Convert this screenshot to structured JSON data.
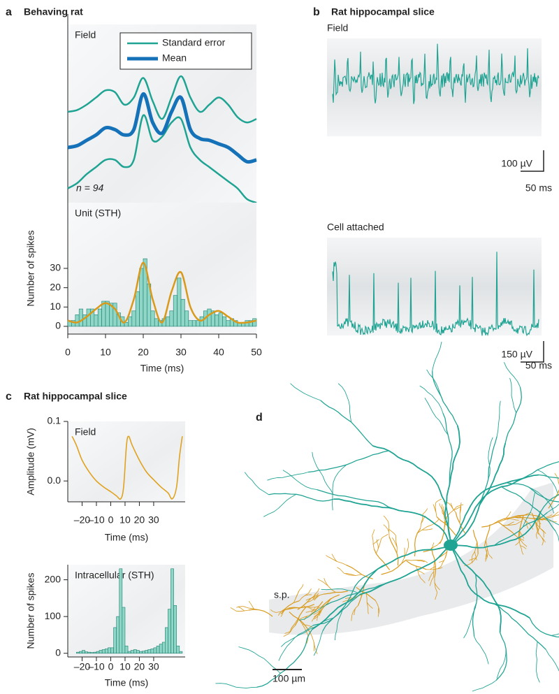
{
  "panels": [
    {
      "letter": "a",
      "title": "Behaving rat"
    },
    {
      "letter": "b",
      "title": "Rat hippocampal slice"
    },
    {
      "letter": "c",
      "title": "Rat hippocampal slice"
    },
    {
      "letter": "d"
    }
  ],
  "neuron": {
    "annotation": "s.p.",
    "scale": "100 µm"
  },
  "chart_data": [
    {
      "type": "line",
      "label": "Field",
      "annotation": "n = 94",
      "legend": "upper right",
      "x": [
        0,
        2.5,
        5,
        7.5,
        10,
        12.5,
        15,
        17.5,
        20,
        22.5,
        25,
        27.5,
        30,
        32.5,
        35,
        37.5,
        40,
        42.5,
        45,
        47.5,
        50
      ],
      "xlim": [
        0,
        50
      ],
      "ylim": [
        0,
        100
      ],
      "series": [
        {
          "name": "Standard error",
          "color": "#1fa393",
          "upper": [
            51,
            52,
            55,
            59,
            63,
            62,
            55,
            59,
            70,
            57,
            47,
            59,
            71,
            59,
            51,
            55,
            59,
            55,
            48,
            45,
            47
          ],
          "lower": [
            8,
            11,
            16,
            20,
            24,
            24,
            20,
            24,
            49,
            35,
            37,
            45,
            47,
            31,
            24,
            20,
            16,
            12,
            8,
            2,
            0
          ]
        },
        {
          "name": "Mean",
          "color": "#1672b8",
          "values": [
            31,
            32,
            35,
            38,
            42,
            41,
            38,
            41,
            61,
            45,
            39,
            51,
            59,
            41,
            36,
            35,
            33,
            31,
            27,
            23,
            24
          ]
        }
      ]
    },
    {
      "type": "histogram",
      "label": "Unit (STH)",
      "ylabel": "Number of spikes",
      "xlabel": "Time (ms)",
      "bins": [
        0,
        1,
        2,
        3,
        4,
        5,
        6,
        7,
        8,
        9,
        10,
        11,
        12,
        13,
        14,
        15,
        16,
        17,
        18,
        19,
        20,
        21,
        22,
        23,
        24,
        25,
        26,
        27,
        28,
        29,
        30,
        31,
        32,
        33,
        34,
        35,
        36,
        37,
        38,
        39,
        40,
        41,
        42,
        43,
        44,
        45,
        46,
        47,
        48,
        49,
        50
      ],
      "values": [
        3,
        3,
        6,
        9,
        6,
        9,
        9,
        6,
        9,
        13,
        13,
        12,
        12,
        7,
        5,
        2,
        5,
        8,
        18,
        30,
        35,
        22,
        8,
        4,
        3,
        4,
        5,
        8,
        16,
        25,
        14,
        8,
        3,
        3,
        3,
        5,
        8,
        9,
        8,
        6,
        7,
        5,
        3,
        4,
        3,
        2,
        2,
        3,
        3,
        4
      ],
      "color": "#8fd6c6",
      "xlim": [
        0,
        50
      ],
      "xticks": [
        0,
        10,
        20,
        30,
        40,
        50
      ],
      "ylim": [
        -4,
        64
      ],
      "yticks": [
        0,
        10,
        20,
        30
      ],
      "line": {
        "color": "#d99a1c",
        "x": [
          0,
          2.5,
          5,
          7.5,
          10,
          12.5,
          15,
          17.5,
          20,
          22.5,
          25,
          27.5,
          30,
          32.5,
          35,
          37.5,
          40,
          42.5,
          45,
          47.5,
          50
        ],
        "values": [
          3,
          2,
          5,
          9,
          12,
          9,
          2,
          14,
          33,
          14,
          2,
          18,
          28,
          10,
          3,
          6,
          8,
          5,
          2,
          2,
          3
        ]
      }
    },
    {
      "type": "trace",
      "label": "Field",
      "scale_y": "100 µV",
      "scale_x": "50 ms",
      "color": "#1fa393"
    },
    {
      "type": "trace",
      "label": "Cell attached",
      "scale_y": "150 µV",
      "scale_x": "50 ms",
      "color": "#1fa393"
    },
    {
      "type": "line",
      "label": "Field",
      "ylabel": "Amplitude (mV)",
      "xlabel": "Time (ms)",
      "x": [
        -27,
        -24,
        -20,
        -15,
        -10,
        -5,
        0,
        4,
        7,
        9,
        11,
        12.5,
        15,
        20,
        25,
        30,
        35,
        40,
        43,
        46,
        48,
        50
      ],
      "xlim": [
        -30,
        52
      ],
      "xticks": [
        {
          "value": -20,
          "label": "–20"
        },
        {
          "value": -10,
          "label": "–10"
        },
        0,
        10,
        20,
        30
      ],
      "ylim": [
        -0.035,
        0.1
      ],
      "yticks": [
        {
          "value": 0,
          "label": "0.0"
        },
        0.1
      ],
      "series": [
        {
          "color": "#e0a21f",
          "values": [
            0.075,
            0.06,
            0.035,
            0.015,
            0.0,
            -0.01,
            -0.018,
            -0.025,
            -0.03,
            -0.01,
            0.06,
            0.075,
            0.06,
            0.035,
            0.015,
            0.002,
            -0.01,
            -0.02,
            -0.03,
            -0.01,
            0.04,
            0.075
          ]
        }
      ]
    },
    {
      "type": "histogram",
      "label": "Intracellular (STH)",
      "ylabel": "Number of spikes",
      "xlabel": "Time (ms)",
      "bins": [
        -28,
        -26,
        -24,
        -22,
        -20,
        -18,
        -16,
        -14,
        -12,
        -10,
        -8,
        -6,
        -4,
        -2,
        0,
        2,
        4,
        6,
        8,
        10,
        12,
        14,
        16,
        18,
        20,
        22,
        24,
        26,
        28,
        30,
        32,
        34,
        36,
        38,
        40,
        42,
        44,
        46,
        48,
        50
      ],
      "values": [
        0,
        0,
        3,
        5,
        8,
        4,
        3,
        2,
        3,
        5,
        8,
        10,
        12,
        15,
        15,
        70,
        100,
        230,
        125,
        20,
        5,
        8,
        10,
        8,
        5,
        6,
        8,
        10,
        12,
        15,
        20,
        25,
        30,
        70,
        120,
        230,
        130,
        20,
        5
      ],
      "color": "#8fd6c6",
      "xlim": [
        -30,
        52
      ],
      "xticks": [
        {
          "value": -20,
          "label": "–20"
        },
        {
          "value": -10,
          "label": "–10"
        },
        0,
        10,
        20,
        30
      ],
      "ylim": [
        -10,
        241
      ],
      "yticks": [
        0,
        100,
        200
      ]
    }
  ]
}
